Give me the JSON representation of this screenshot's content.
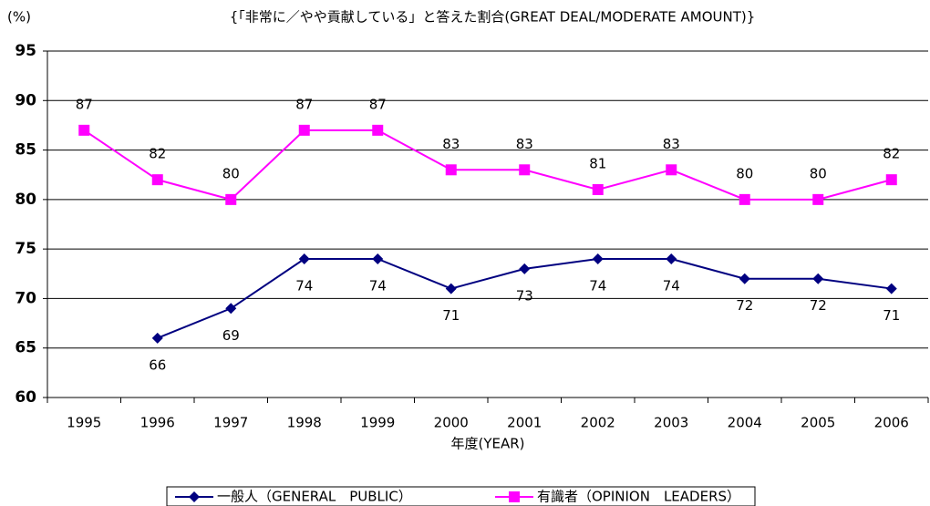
{
  "chart_data": {
    "type": "line",
    "title": "{「非常に／やや貢献している」と答えた割合(GREAT DEAL/MODERATE AMOUNT)}",
    "y_label": "(%)",
    "x_label": "年度(YEAR)",
    "categories": [
      "1995",
      "1996",
      "1997",
      "1998",
      "1999",
      "2000",
      "2001",
      "2002",
      "2003",
      "2004",
      "2005",
      "2006"
    ],
    "series": [
      {
        "name": "一般人（GENERAL　PUBLIC）",
        "color": "#000080",
        "marker": "diamond",
        "values": [
          null,
          66,
          69,
          74,
          74,
          71,
          73,
          74,
          74,
          72,
          72,
          71
        ]
      },
      {
        "name": "有識者（OPINION　LEADERS）",
        "color": "#ff00ff",
        "marker": "square",
        "values": [
          87,
          82,
          80,
          87,
          87,
          83,
          83,
          81,
          83,
          80,
          80,
          82
        ]
      }
    ],
    "ylim": [
      60,
      95
    ],
    "yticks": [
      60,
      65,
      70,
      75,
      80,
      85,
      90,
      95
    ],
    "grid": true,
    "legend": "bottom"
  }
}
